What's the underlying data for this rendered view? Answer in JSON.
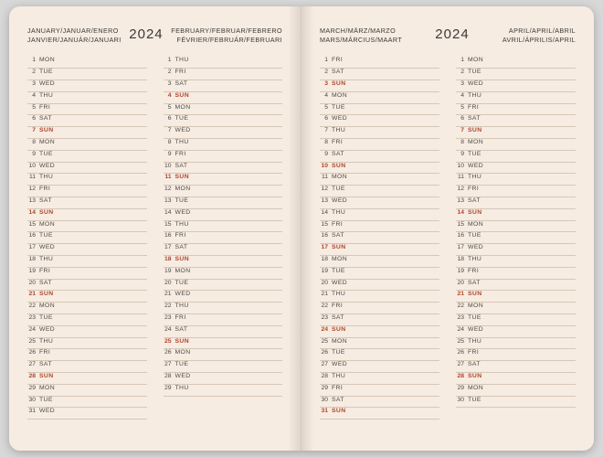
{
  "year": "2024",
  "colors": {
    "page_bg": "#f7ece2",
    "rule": "#d6c7b8",
    "text": "#3a3a38",
    "sunday": "#b1452c",
    "outer_bg": "#d8d8d8"
  },
  "pages": [
    {
      "header_left": [
        "JANUARY/JANUAR/ENERO",
        "JANVIER/JANUÁR/JANUARI"
      ],
      "header_right": [
        "FEBRUARY/FEBRUAR/FEBRERO",
        "FÉVRIER/FEBRUÁR/FEBRUARI"
      ],
      "year_side": "center-right",
      "months": [
        {
          "days": [
            {
              "n": "1",
              "d": "MON"
            },
            {
              "n": "2",
              "d": "TUE"
            },
            {
              "n": "3",
              "d": "WED"
            },
            {
              "n": "4",
              "d": "THU"
            },
            {
              "n": "5",
              "d": "FRI"
            },
            {
              "n": "6",
              "d": "SAT"
            },
            {
              "n": "7",
              "d": "SUN",
              "sun": true
            },
            {
              "n": "8",
              "d": "MON"
            },
            {
              "n": "9",
              "d": "TUE"
            },
            {
              "n": "10",
              "d": "WED"
            },
            {
              "n": "11",
              "d": "THU"
            },
            {
              "n": "12",
              "d": "FRI"
            },
            {
              "n": "13",
              "d": "SAT"
            },
            {
              "n": "14",
              "d": "SUN",
              "sun": true
            },
            {
              "n": "15",
              "d": "MON"
            },
            {
              "n": "16",
              "d": "TUE"
            },
            {
              "n": "17",
              "d": "WED"
            },
            {
              "n": "18",
              "d": "THU"
            },
            {
              "n": "19",
              "d": "FRI"
            },
            {
              "n": "20",
              "d": "SAT"
            },
            {
              "n": "21",
              "d": "SUN",
              "sun": true
            },
            {
              "n": "22",
              "d": "MON"
            },
            {
              "n": "23",
              "d": "TUE"
            },
            {
              "n": "24",
              "d": "WED"
            },
            {
              "n": "25",
              "d": "THU"
            },
            {
              "n": "26",
              "d": "FRI"
            },
            {
              "n": "27",
              "d": "SAT"
            },
            {
              "n": "28",
              "d": "SUN",
              "sun": true
            },
            {
              "n": "29",
              "d": "MON"
            },
            {
              "n": "30",
              "d": "TUE"
            },
            {
              "n": "31",
              "d": "WED"
            }
          ]
        },
        {
          "days": [
            {
              "n": "1",
              "d": "THU"
            },
            {
              "n": "2",
              "d": "FRI"
            },
            {
              "n": "3",
              "d": "SAT"
            },
            {
              "n": "4",
              "d": "SUN",
              "sun": true
            },
            {
              "n": "5",
              "d": "MON"
            },
            {
              "n": "6",
              "d": "TUE"
            },
            {
              "n": "7",
              "d": "WED"
            },
            {
              "n": "8",
              "d": "THU"
            },
            {
              "n": "9",
              "d": "FRI"
            },
            {
              "n": "10",
              "d": "SAT"
            },
            {
              "n": "11",
              "d": "SUN",
              "sun": true
            },
            {
              "n": "12",
              "d": "MON"
            },
            {
              "n": "13",
              "d": "TUE"
            },
            {
              "n": "14",
              "d": "WED"
            },
            {
              "n": "15",
              "d": "THU"
            },
            {
              "n": "16",
              "d": "FRI"
            },
            {
              "n": "17",
              "d": "SAT"
            },
            {
              "n": "18",
              "d": "SUN",
              "sun": true
            },
            {
              "n": "19",
              "d": "MON"
            },
            {
              "n": "20",
              "d": "TUE"
            },
            {
              "n": "21",
              "d": "WED"
            },
            {
              "n": "22",
              "d": "THU"
            },
            {
              "n": "23",
              "d": "FRI"
            },
            {
              "n": "24",
              "d": "SAT"
            },
            {
              "n": "25",
              "d": "SUN",
              "sun": true
            },
            {
              "n": "26",
              "d": "MON"
            },
            {
              "n": "27",
              "d": "TUE"
            },
            {
              "n": "28",
              "d": "WED"
            },
            {
              "n": "29",
              "d": "THU"
            }
          ]
        }
      ]
    },
    {
      "header_left": [
        "MARCH/MÄRZ/MARZO",
        "MARS/MÁRCIUS/MAART"
      ],
      "header_right": [
        "APRIL/APRIL/ABRIL",
        "AVRIL/ÁPRILIS/APRIL"
      ],
      "year_side": "center-left",
      "months": [
        {
          "days": [
            {
              "n": "1",
              "d": "FRI"
            },
            {
              "n": "2",
              "d": "SAT"
            },
            {
              "n": "3",
              "d": "SUN",
              "sun": true
            },
            {
              "n": "4",
              "d": "MON"
            },
            {
              "n": "5",
              "d": "TUE"
            },
            {
              "n": "6",
              "d": "WED"
            },
            {
              "n": "7",
              "d": "THU"
            },
            {
              "n": "8",
              "d": "FRI"
            },
            {
              "n": "9",
              "d": "SAT"
            },
            {
              "n": "10",
              "d": "SUN",
              "sun": true
            },
            {
              "n": "11",
              "d": "MON"
            },
            {
              "n": "12",
              "d": "TUE"
            },
            {
              "n": "13",
              "d": "WED"
            },
            {
              "n": "14",
              "d": "THU"
            },
            {
              "n": "15",
              "d": "FRI"
            },
            {
              "n": "16",
              "d": "SAT"
            },
            {
              "n": "17",
              "d": "SUN",
              "sun": true
            },
            {
              "n": "18",
              "d": "MON"
            },
            {
              "n": "19",
              "d": "TUE"
            },
            {
              "n": "20",
              "d": "WED"
            },
            {
              "n": "21",
              "d": "THU"
            },
            {
              "n": "22",
              "d": "FRI"
            },
            {
              "n": "23",
              "d": "SAT"
            },
            {
              "n": "24",
              "d": "SUN",
              "sun": true
            },
            {
              "n": "25",
              "d": "MON"
            },
            {
              "n": "26",
              "d": "TUE"
            },
            {
              "n": "27",
              "d": "WED"
            },
            {
              "n": "28",
              "d": "THU"
            },
            {
              "n": "29",
              "d": "FRI"
            },
            {
              "n": "30",
              "d": "SAT"
            },
            {
              "n": "31",
              "d": "SUN",
              "sun": true
            }
          ]
        },
        {
          "days": [
            {
              "n": "1",
              "d": "MON"
            },
            {
              "n": "2",
              "d": "TUE"
            },
            {
              "n": "3",
              "d": "WED"
            },
            {
              "n": "4",
              "d": "THU"
            },
            {
              "n": "5",
              "d": "FRI"
            },
            {
              "n": "6",
              "d": "SAT"
            },
            {
              "n": "7",
              "d": "SUN",
              "sun": true
            },
            {
              "n": "8",
              "d": "MON"
            },
            {
              "n": "9",
              "d": "TUE"
            },
            {
              "n": "10",
              "d": "WED"
            },
            {
              "n": "11",
              "d": "THU"
            },
            {
              "n": "12",
              "d": "FRI"
            },
            {
              "n": "13",
              "d": "SAT"
            },
            {
              "n": "14",
              "d": "SUN",
              "sun": true
            },
            {
              "n": "15",
              "d": "MON"
            },
            {
              "n": "16",
              "d": "TUE"
            },
            {
              "n": "17",
              "d": "WED"
            },
            {
              "n": "18",
              "d": "THU"
            },
            {
              "n": "19",
              "d": "FRI"
            },
            {
              "n": "20",
              "d": "SAT"
            },
            {
              "n": "21",
              "d": "SUN",
              "sun": true
            },
            {
              "n": "22",
              "d": "MON"
            },
            {
              "n": "23",
              "d": "TUE"
            },
            {
              "n": "24",
              "d": "WED"
            },
            {
              "n": "25",
              "d": "THU"
            },
            {
              "n": "26",
              "d": "FRI"
            },
            {
              "n": "27",
              "d": "SAT"
            },
            {
              "n": "28",
              "d": "SUN",
              "sun": true
            },
            {
              "n": "29",
              "d": "MON"
            },
            {
              "n": "30",
              "d": "TUE"
            }
          ]
        }
      ]
    }
  ]
}
